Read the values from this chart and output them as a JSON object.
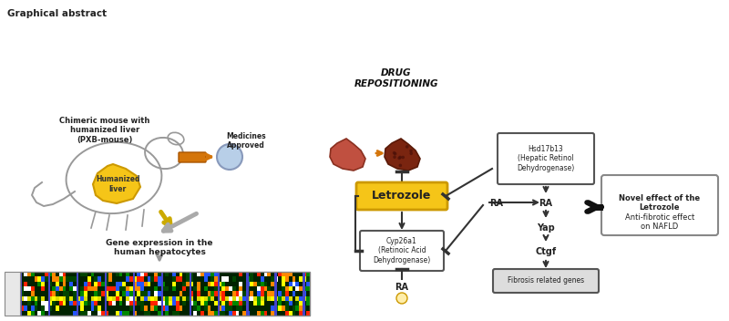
{
  "title": "Graphical abstract",
  "bg_color": "#ffffff",
  "sections": {
    "left": {
      "mouse_label": "Chimeric mouse with\nhumanized liver\n(PXB-mouse)",
      "liver_label": "Humanized\nliver",
      "gene_label": "Gene expression in the\nhuman hepatocytes",
      "medicines_label": "Medicines\nApproved"
    },
    "middle": {
      "drug_label": "DRUG\nREPOSITIONING",
      "letrozole_label": "Letrozole",
      "cyp_label": "Cyp26a1\n(Retinoic Acid\nDehydrogenase)",
      "ra_label": "RA"
    },
    "right": {
      "hsd_label": "Hsd17b13\n(Hepatic Retinol\nDehydrogenase)",
      "ra_label": "RA",
      "yap_label": "Yap",
      "ctgf_label": "Ctgf",
      "fibrosis_label": "Fibrosis related genes",
      "novel_label": "Novel effect of the\nLetrozole",
      "anti_label": "Anti-fibrotic effect\non NAFLD"
    }
  },
  "colors": {
    "yellow_box": "#f5c518",
    "orange": "#d4750a",
    "dark_orange": "#cc6600",
    "light_blue": "#aaccee",
    "gray": "#888888",
    "light_gray": "#cccccc",
    "dark": "#222222",
    "box_outline": "#555555",
    "green": "#00aa00",
    "yellow": "#ffff00",
    "blue": "#0000ff",
    "red": "#ff0000",
    "liver_healthy": "#c05040",
    "liver_fibrotic": "#8a3520"
  }
}
